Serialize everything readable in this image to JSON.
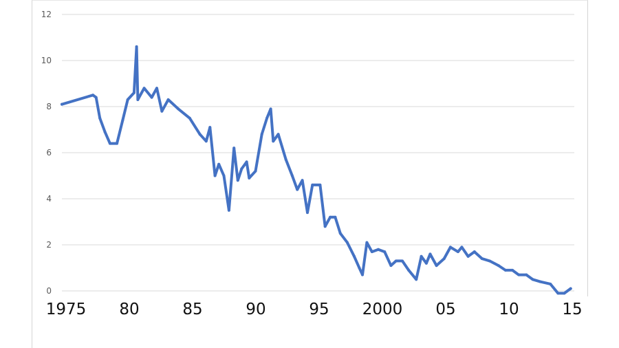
{
  "chart_data": {
    "type": "line",
    "title": "",
    "xlabel": "",
    "ylabel": "",
    "ylim": [
      0,
      12
    ],
    "yticks": [
      "0",
      "2",
      "4",
      "6",
      "8",
      "10",
      "12"
    ],
    "xticks": [
      {
        "year": 1975,
        "label": "1975"
      },
      {
        "year": 1980,
        "label": "80"
      },
      {
        "year": 1985,
        "label": "85"
      },
      {
        "year": 1990,
        "label": "90"
      },
      {
        "year": 1995,
        "label": "95"
      },
      {
        "year": 2000,
        "label": "2000"
      },
      {
        "year": 2005,
        "label": "05"
      },
      {
        "year": 2010,
        "label": "10"
      },
      {
        "year": 2015,
        "label": "15"
      }
    ],
    "xlim": [
      1975,
      2015.6
    ],
    "grid": "horizontal",
    "line_color": "#4472C4",
    "series": [
      {
        "x": [
          1975.0,
          1977.45,
          1977.7,
          1978.0,
          1978.4,
          1978.8,
          1979.35,
          1979.8,
          1980.2,
          1980.7,
          1980.9,
          1981.0,
          1981.5,
          1982.1,
          1982.5,
          1982.9,
          1983.4,
          1984.2,
          1985.1,
          1985.9,
          1986.4,
          1986.7,
          1987.1,
          1987.4,
          1987.8,
          1988.2,
          1988.6,
          1988.9,
          1989.2,
          1989.6,
          1989.8,
          1990.3,
          1990.8,
          1991.2,
          1991.5,
          1991.7,
          1992.1,
          1992.7,
          1993.2,
          1993.6,
          1994.0,
          1994.4,
          1994.8,
          1995.4,
          1995.8,
          1996.2,
          1996.6,
          1997.0,
          1997.55,
          1998.1,
          1998.5,
          1998.75,
          1999.1,
          1999.5,
          2000.0,
          2000.5,
          2001.0,
          2001.4,
          2001.9,
          2002.4,
          2003.0,
          2003.4,
          2003.8,
          2004.1,
          2004.6,
          2005.2,
          2005.7,
          2006.3,
          2006.6,
          2007.1,
          2007.6,
          2008.2,
          2008.8,
          2009.5,
          2010.05,
          2010.6,
          2011.1,
          2011.7,
          2012.2,
          2012.8,
          2013.6,
          2014.2,
          2014.7,
          2015.2
        ],
        "y": [
          8.1,
          8.5,
          8.4,
          7.5,
          6.9,
          6.4,
          6.4,
          7.4,
          8.3,
          8.6,
          10.6,
          8.3,
          8.8,
          8.4,
          8.8,
          7.8,
          8.3,
          7.9,
          7.5,
          6.8,
          6.5,
          7.1,
          5.0,
          5.5,
          5.0,
          3.5,
          6.2,
          4.8,
          5.3,
          5.6,
          4.9,
          5.2,
          6.8,
          7.5,
          7.9,
          6.5,
          6.8,
          5.7,
          5.0,
          4.4,
          4.8,
          3.4,
          4.6,
          4.6,
          2.8,
          3.2,
          3.2,
          2.5,
          2.1,
          1.5,
          1.0,
          0.7,
          2.1,
          1.7,
          1.8,
          1.7,
          1.1,
          1.3,
          1.3,
          0.9,
          0.5,
          1.5,
          1.2,
          1.6,
          1.1,
          1.4,
          1.9,
          1.7,
          1.9,
          1.5,
          1.7,
          1.4,
          1.3,
          1.1,
          0.9,
          0.9,
          0.7,
          0.7,
          0.5,
          0.4,
          0.3,
          -0.1,
          -0.1,
          0.1
        ]
      }
    ]
  }
}
